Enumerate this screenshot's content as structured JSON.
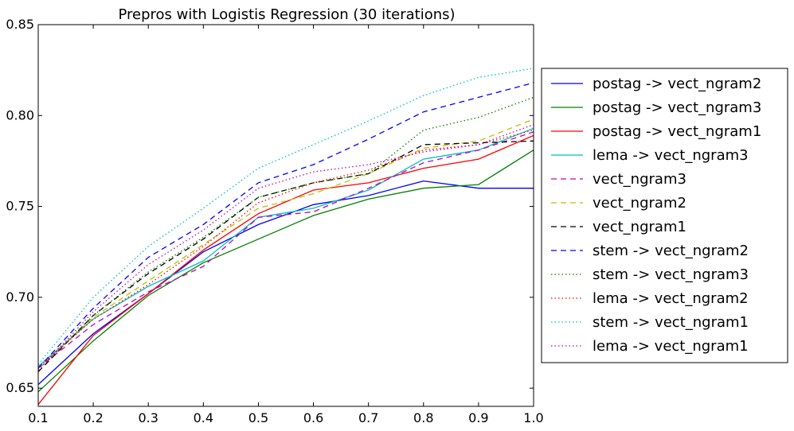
{
  "chart_data": {
    "type": "line",
    "title": "Prepros with Logistis Regression (30 iterations)",
    "xlabel": "",
    "ylabel": "",
    "xlim": [
      0.1,
      1.0
    ],
    "ylim": [
      0.64,
      0.85
    ],
    "x_ticks": [
      "0.1",
      "0.2",
      "0.3",
      "0.4",
      "0.5",
      "0.6",
      "0.7",
      "0.8",
      "0.9",
      "1.0"
    ],
    "y_ticks": [
      "0.65",
      "0.70",
      "0.75",
      "0.80",
      "0.85"
    ],
    "grid": false,
    "legend_position": "right outside",
    "x": [
      0.1,
      0.2,
      0.3,
      0.4,
      0.5,
      0.6,
      0.7,
      0.8,
      0.9,
      1.0
    ],
    "series": [
      {
        "name": "postag -> vect_ngram2",
        "color": "#0000ff",
        "style": "solid",
        "values": [
          0.652,
          0.68,
          0.702,
          0.725,
          0.74,
          0.751,
          0.756,
          0.764,
          0.76,
          0.76
        ]
      },
      {
        "name": "postag -> vect_ngram3",
        "color": "#008000",
        "style": "solid",
        "values": [
          0.648,
          0.676,
          0.701,
          0.719,
          0.732,
          0.745,
          0.754,
          0.76,
          0.762,
          0.781
        ]
      },
      {
        "name": "postag -> vect_ngram1",
        "color": "#ff0000",
        "style": "solid",
        "values": [
          0.641,
          0.679,
          0.702,
          0.726,
          0.746,
          0.759,
          0.763,
          0.771,
          0.776,
          0.789
        ]
      },
      {
        "name": "lema -> vect_ngram3",
        "color": "#00bfbf",
        "style": "solid",
        "values": [
          0.662,
          0.688,
          0.706,
          0.72,
          0.744,
          0.749,
          0.759,
          0.776,
          0.781,
          0.793
        ]
      },
      {
        "name": "vect_ngram3",
        "color": "#bf00bf",
        "style": "dashed",
        "values": [
          0.661,
          0.685,
          0.703,
          0.717,
          0.744,
          0.747,
          0.76,
          0.774,
          0.781,
          0.791
        ]
      },
      {
        "name": "vect_ngram2",
        "color": "#bfbf00",
        "style": "dashed",
        "values": [
          0.661,
          0.689,
          0.709,
          0.729,
          0.749,
          0.757,
          0.768,
          0.782,
          0.786,
          0.798
        ]
      },
      {
        "name": "vect_ngram1",
        "color": "#000000",
        "style": "dashed",
        "values": [
          0.659,
          0.69,
          0.713,
          0.732,
          0.755,
          0.763,
          0.768,
          0.784,
          0.785,
          0.786
        ]
      },
      {
        "name": "stem -> vect_ngram2",
        "color": "#0000ff",
        "style": "dashed",
        "values": [
          0.661,
          0.694,
          0.722,
          0.74,
          0.763,
          0.773,
          0.787,
          0.802,
          0.81,
          0.818
        ]
      },
      {
        "name": "stem -> vect_ngram3",
        "color": "#008000",
        "style": "dotted",
        "values": [
          0.66,
          0.69,
          0.714,
          0.733,
          0.755,
          0.763,
          0.768,
          0.792,
          0.799,
          0.81
        ]
      },
      {
        "name": "lema -> vect_ngram2",
        "color": "#ff0000",
        "style": "dotted",
        "values": [
          0.661,
          0.688,
          0.707,
          0.728,
          0.752,
          0.763,
          0.77,
          0.781,
          0.784,
          0.792
        ]
      },
      {
        "name": "stem -> vect_ngram1",
        "color": "#00bfbf",
        "style": "dotted",
        "values": [
          0.663,
          0.7,
          0.728,
          0.749,
          0.771,
          0.784,
          0.797,
          0.811,
          0.821,
          0.826
        ]
      },
      {
        "name": "lema -> vect_ngram1",
        "color": "#bf00bf",
        "style": "dotted",
        "values": [
          0.66,
          0.692,
          0.718,
          0.737,
          0.76,
          0.769,
          0.773,
          0.78,
          0.784,
          0.795
        ]
      }
    ]
  }
}
